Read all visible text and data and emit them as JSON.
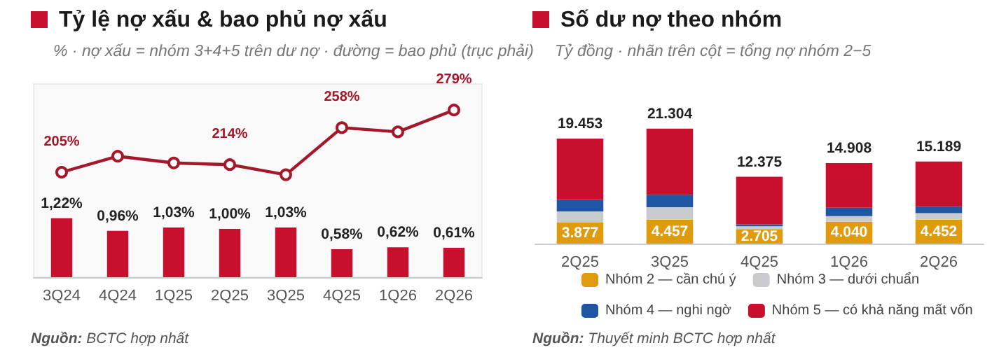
{
  "chart_data": [
    {
      "type": "bar",
      "title": "Tỷ lệ nợ xấu & bao phủ nợ xấu",
      "subtitle": "% · nợ xấu = nhóm 3+4+5 trên dư nợ · đường = bao phủ (trục phải)",
      "categories": [
        "3Q24",
        "4Q24",
        "1Q25",
        "2Q25",
        "3Q25",
        "4Q25",
        "1Q26",
        "2Q26"
      ],
      "series": [
        {
          "type": "bar",
          "color": "#c8102e",
          "values": [
            1.22,
            0.96,
            1.03,
            1.0,
            1.03,
            0.58,
            0.62,
            0.61
          ],
          "value_labels": [
            "1,22%",
            "0,96%",
            "1,03%",
            "1,00%",
            "1,03%",
            "0,58%",
            "0,62%",
            "0,61%"
          ]
        },
        {
          "type": "line",
          "axis": "y2",
          "color": "#a3182a",
          "values": [
            205,
            224,
            216,
            214,
            202,
            258,
            253,
            279
          ],
          "value_labels": [
            "205%",
            null,
            null,
            "214%",
            null,
            "258%",
            null,
            "279%"
          ]
        }
      ],
      "ylim": [
        0,
        4
      ],
      "y2lim": [
        80,
        310
      ],
      "marker": "circle",
      "tick_labels": "x",
      "annotations": [
        "Nguồn: BCTC hợp nhất"
      ]
    },
    {
      "type": "bar",
      "title": "Số dư nợ theo nhóm",
      "subtitle": "Tỷ đồng · nhãn trên cột = tổng nợ nhóm 2−5",
      "categories": [
        "2Q25",
        "3Q25",
        "4Q25",
        "1Q26",
        "2Q26"
      ],
      "stacked": true,
      "series": [
        {
          "name": "Nhóm 2 — cần chú ý",
          "color": "#e09b0d",
          "values": [
            3877,
            4457,
            2705,
            4040,
            4452
          ],
          "value_labels": [
            "3.877",
            "4.457",
            "2.705",
            "4.040",
            "4.452"
          ]
        },
        {
          "name": "Nhóm 3 — dưới chuẩn",
          "color": "#c9cbce",
          "values": [
            2100,
            2300,
            500,
            1050,
            1200
          ]
        },
        {
          "name": "Nhóm 4 — nghi ngờ",
          "color": "#1f56a3",
          "values": [
            2150,
            2300,
            350,
            1550,
            1250
          ]
        },
        {
          "name": "Nhóm 5 — có khả năng mất vốn",
          "color": "#c8102e",
          "values": [
            11326,
            12247,
            8820,
            8268,
            8287
          ]
        }
      ],
      "totals": [
        "19.453",
        "21.304",
        "12.375",
        "14.908",
        "15.189"
      ],
      "legend": "bottom",
      "tick_labels": "x",
      "annotations": [
        "Nguồn: Thuyết minh BCTC hợp nhất"
      ]
    }
  ]
}
